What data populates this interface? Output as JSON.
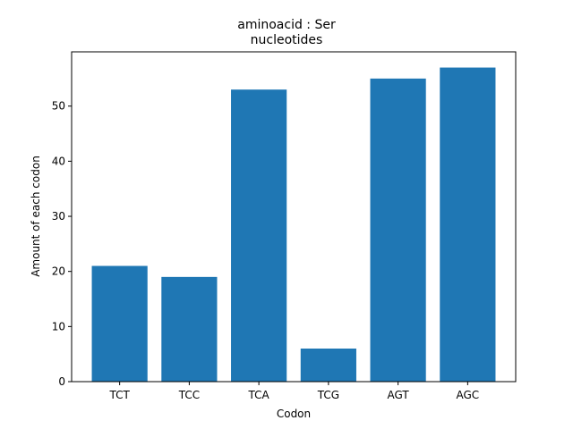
{
  "chart_data": {
    "type": "bar",
    "title": "aminoacid : Ser",
    "subtitle": "nucleotides",
    "xlabel": "Codon",
    "ylabel": "Amount of each codon",
    "categories": [
      "TCT",
      "TCC",
      "TCA",
      "TCG",
      "AGT",
      "AGC"
    ],
    "values": [
      21,
      19,
      53,
      6,
      55,
      57
    ],
    "ylim": [
      0,
      59.85
    ],
    "yticks": [
      0,
      10,
      20,
      30,
      40,
      50
    ],
    "bar_color": "#1f77b4",
    "grid": false,
    "legend": "none"
  }
}
